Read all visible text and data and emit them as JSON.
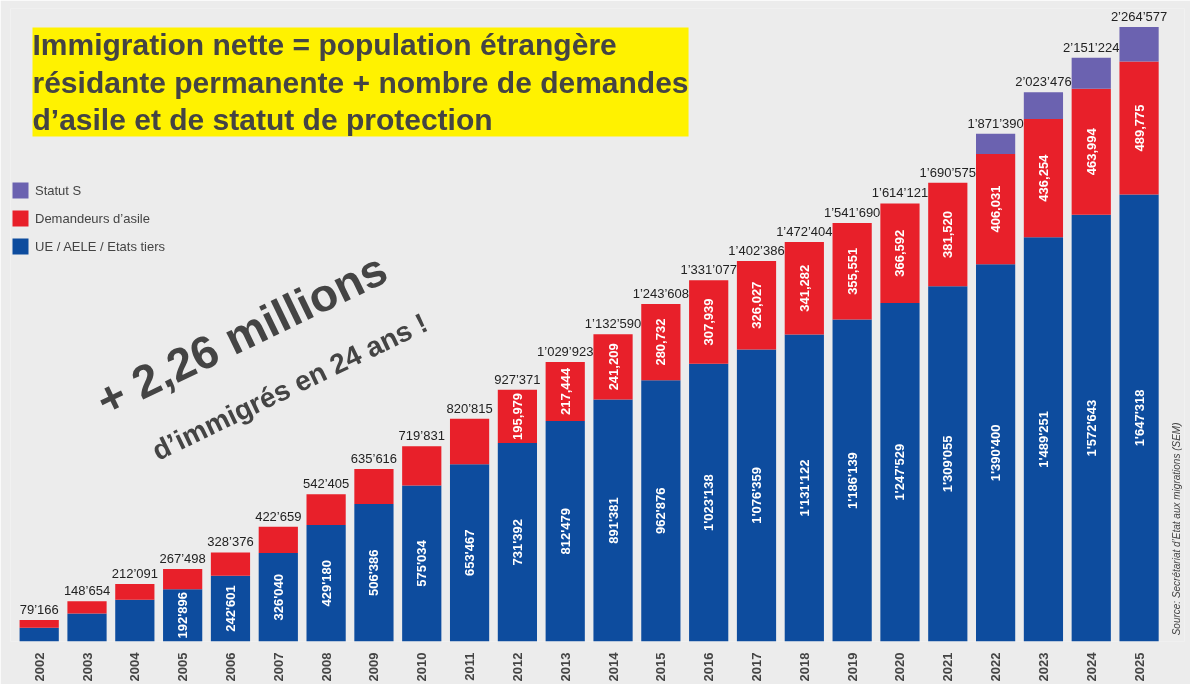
{
  "chart_data": {
    "type": "bar",
    "stacked": true,
    "title": "Immigration nette = population étrangère résidante permanente + nombre de demandes d’asile et de statut de protection",
    "categories": [
      "2002",
      "2003",
      "2004",
      "2005",
      "2006",
      "2007",
      "2008",
      "2009",
      "2010",
      "2011",
      "2012",
      "2013",
      "2014",
      "2015",
      "2016",
      "2017",
      "2018",
      "2019",
      "2020",
      "2021",
      "2022",
      "2023",
      "2024",
      "2025"
    ],
    "series": [
      {
        "name": "UE / AELE / Etats tiers",
        "color": "#0d4c9e",
        "values": [
          51000,
          103000,
          154000,
          192896,
          242601,
          326040,
          429180,
          506386,
          575034,
          653467,
          731392,
          812479,
          891381,
          962876,
          1023138,
          1076359,
          1131122,
          1186139,
          1247529,
          1309055,
          1390400,
          1489251,
          1572643,
          1647318
        ],
        "value_labels": [
          null,
          null,
          null,
          "192'896",
          "242'601",
          "326'040",
          "429'180",
          "506'386",
          "575'034",
          "653'467",
          "731'392",
          "812'479",
          "891'381",
          "962'876",
          "1'023'138",
          "1'076'359",
          "1'131'122",
          "1'186'139",
          "1'247'529",
          "1'309'055",
          "1'390'400",
          "1'489'251",
          "1'572'643",
          "1'647'318"
        ]
      },
      {
        "name": "Demandeurs d’asile",
        "color": "#e8202a",
        "values": [
          28166,
          45654,
          58091,
          74602,
          85775,
          96619,
          113225,
          129230,
          144797,
          167348,
          195979,
          217444,
          241209,
          280732,
          307939,
          326027,
          341282,
          355551,
          366592,
          381520,
          406031,
          436254,
          463994,
          489775
        ],
        "value_labels": [
          null,
          null,
          null,
          null,
          null,
          null,
          null,
          null,
          null,
          null,
          "195,979",
          "217,444",
          "241,209",
          "280,732",
          "307,939",
          "326,027",
          "341,282",
          "355,551",
          "366,592",
          "381,520",
          "406,031",
          "436,254",
          "463,994",
          "489,775"
        ]
      },
      {
        "name": "Statut S",
        "color": "#6b62b0",
        "values": [
          0,
          0,
          0,
          0,
          0,
          0,
          0,
          0,
          0,
          0,
          0,
          0,
          0,
          0,
          0,
          0,
          0,
          0,
          0,
          0,
          74959,
          97971,
          114587,
          127484
        ]
      }
    ],
    "totals": [
      "79’166",
      "148’654",
      "212’091",
      "267’498",
      "328’376",
      "422’659",
      "542’405",
      "635’616",
      "719’831",
      "820’815",
      "927’371",
      "1’029’923",
      "1’132’590",
      "1’243’608",
      "1’331’077",
      "1’402’386",
      "1’472’404",
      "1’541’690",
      "1’614’121",
      "1’690’575",
      "1’871’390",
      "2’023’476",
      "2’151’224",
      "2’264’577"
    ],
    "annotations": [
      "+ 2,26 millions",
      "d’immigrés en 24 ans !",
      "Source: Secrétariat d’Etat aux migrations (SEM)"
    ],
    "legend": "top left",
    "grid": false
  }
}
